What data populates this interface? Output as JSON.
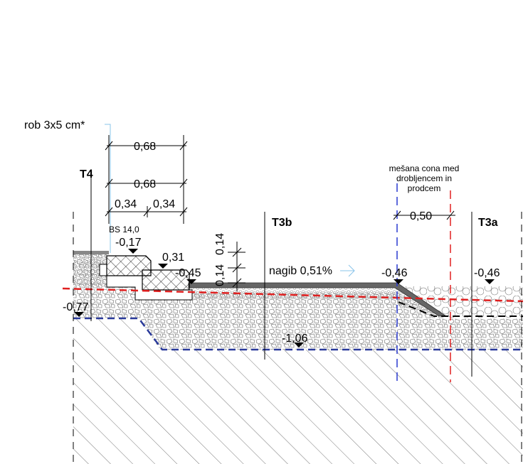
{
  "labels": {
    "edge_note": "rob 3x5 cm*",
    "dim_top": "0,68",
    "dim_mid": "0,68",
    "dim_left_half": "0,34",
    "dim_right_half": "0,34",
    "t4": "T4",
    "curb": "BS 14,0",
    "level_curb_top": "-0,17",
    "level_curb_step": "0,31",
    "level_gutter": "-0,45",
    "layer_top": "0,14",
    "layer_bottom": "0,14",
    "t3b": "T3b",
    "slope": "nagib 0,51%",
    "level_edge": "-0,46",
    "mixed_zone": [
      "mešana cona med",
      "drobljencem in",
      "prodcem"
    ],
    "dim_zone": "0,50",
    "t3a": "T3a",
    "level_right": "-0,46",
    "level_left": "-0,77",
    "level_base": "-1,06"
  }
}
